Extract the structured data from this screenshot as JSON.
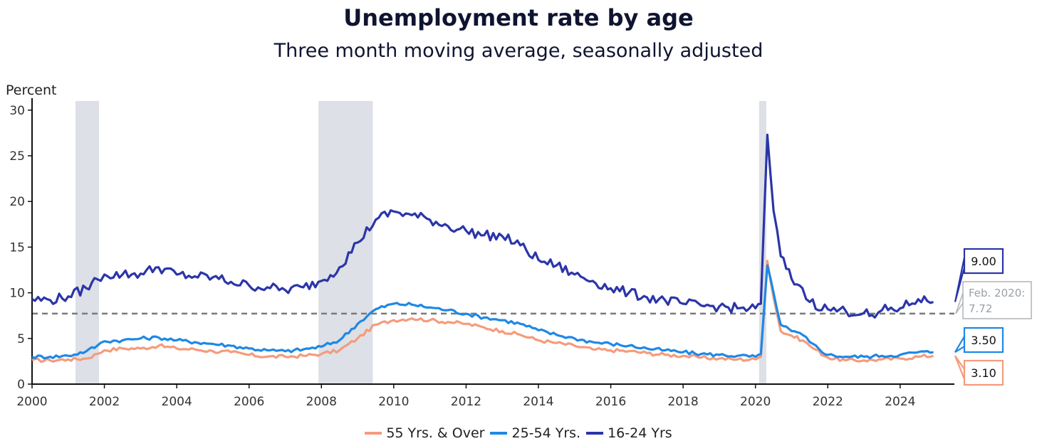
{
  "chart_data": {
    "type": "line",
    "title": "Unemployment rate by age",
    "subtitle": "Three month moving average, seasonally adjusted",
    "ylabel": "Percent",
    "xlabel": "",
    "ylim": [
      0,
      31
    ],
    "xlim": [
      2000,
      2025.5
    ],
    "yticks": [
      0,
      5,
      10,
      15,
      20,
      25,
      30
    ],
    "xticks": [
      "2000",
      "2002",
      "2004",
      "2006",
      "2008",
      "2010",
      "2012",
      "2014",
      "2016",
      "2018",
      "2020",
      "2022",
      "2024"
    ],
    "grid": false,
    "legend_position": "bottom",
    "recessions": [
      [
        2001.2,
        2001.85
      ],
      [
        2007.92,
        2009.42
      ],
      [
        2020.1,
        2020.3
      ]
    ],
    "reference_line": {
      "value": 7.72,
      "label_line1": "Feb. 2020:",
      "label_line2": "7.72",
      "color": "#7a7a7a"
    },
    "series": [
      {
        "name": "55 Yrs. & Over",
        "color": "#f59b7c",
        "end_label": "3.10",
        "points": [
          [
            2000,
            2.6
          ],
          [
            2000.5,
            2.6
          ],
          [
            2001,
            2.7
          ],
          [
            2001.5,
            2.8
          ],
          [
            2001.8,
            3.3
          ],
          [
            2002,
            3.7
          ],
          [
            2002.5,
            3.9
          ],
          [
            2003,
            3.9
          ],
          [
            2003.5,
            4.2
          ],
          [
            2004,
            3.9
          ],
          [
            2004.5,
            3.8
          ],
          [
            2005,
            3.6
          ],
          [
            2005.5,
            3.5
          ],
          [
            2006,
            3.2
          ],
          [
            2006.5,
            3.0
          ],
          [
            2007,
            3.0
          ],
          [
            2007.5,
            3.1
          ],
          [
            2008,
            3.3
          ],
          [
            2008.5,
            3.7
          ],
          [
            2009,
            5.0
          ],
          [
            2009.5,
            6.5
          ],
          [
            2010,
            7.0
          ],
          [
            2010.5,
            7.2
          ],
          [
            2011,
            7.0
          ],
          [
            2011.5,
            6.8
          ],
          [
            2012,
            6.6
          ],
          [
            2012.5,
            6.2
          ],
          [
            2013,
            5.8
          ],
          [
            2013.5,
            5.4
          ],
          [
            2014,
            4.8
          ],
          [
            2014.5,
            4.5
          ],
          [
            2015,
            4.2
          ],
          [
            2015.5,
            3.8
          ],
          [
            2016,
            3.7
          ],
          [
            2016.5,
            3.6
          ],
          [
            2017,
            3.4
          ],
          [
            2017.5,
            3.2
          ],
          [
            2018,
            3.1
          ],
          [
            2018.5,
            2.9
          ],
          [
            2019,
            2.8
          ],
          [
            2019.5,
            2.7
          ],
          [
            2020,
            2.7
          ],
          [
            2020.15,
            3.0
          ],
          [
            2020.33,
            13.5
          ],
          [
            2020.5,
            9.5
          ],
          [
            2020.7,
            5.8
          ],
          [
            2021,
            5.3
          ],
          [
            2021.3,
            4.8
          ],
          [
            2021.5,
            4.2
          ],
          [
            2022,
            2.9
          ],
          [
            2022.5,
            2.6
          ],
          [
            2023,
            2.6
          ],
          [
            2023.5,
            2.7
          ],
          [
            2024,
            2.8
          ],
          [
            2024.5,
            3.0
          ],
          [
            2024.92,
            3.1
          ]
        ]
      },
      {
        "name": "25-54 Yrs.",
        "color": "#1e88e5",
        "end_label": "3.50",
        "points": [
          [
            2000,
            3.0
          ],
          [
            2000.5,
            3.0
          ],
          [
            2001,
            3.1
          ],
          [
            2001.5,
            3.6
          ],
          [
            2001.8,
            4.2
          ],
          [
            2002,
            4.7
          ],
          [
            2002.5,
            4.8
          ],
          [
            2003,
            5.0
          ],
          [
            2003.5,
            5.1
          ],
          [
            2004,
            4.8
          ],
          [
            2004.5,
            4.6
          ],
          [
            2005,
            4.4
          ],
          [
            2005.5,
            4.2
          ],
          [
            2006,
            3.9
          ],
          [
            2006.5,
            3.7
          ],
          [
            2007,
            3.6
          ],
          [
            2007.5,
            3.8
          ],
          [
            2008,
            4.1
          ],
          [
            2008.5,
            4.8
          ],
          [
            2009,
            6.6
          ],
          [
            2009.5,
            8.2
          ],
          [
            2010,
            8.8
          ],
          [
            2010.5,
            8.7
          ],
          [
            2011,
            8.4
          ],
          [
            2011.5,
            8.1
          ],
          [
            2012,
            7.7
          ],
          [
            2012.5,
            7.3
          ],
          [
            2013,
            7.0
          ],
          [
            2013.5,
            6.6
          ],
          [
            2014,
            5.9
          ],
          [
            2014.5,
            5.4
          ],
          [
            2015,
            5.0
          ],
          [
            2015.5,
            4.6
          ],
          [
            2016,
            4.4
          ],
          [
            2016.5,
            4.2
          ],
          [
            2017,
            3.9
          ],
          [
            2017.5,
            3.7
          ],
          [
            2018,
            3.5
          ],
          [
            2018.5,
            3.3
          ],
          [
            2019,
            3.2
          ],
          [
            2019.5,
            3.1
          ],
          [
            2020,
            3.0
          ],
          [
            2020.15,
            3.3
          ],
          [
            2020.33,
            13.0
          ],
          [
            2020.5,
            10.0
          ],
          [
            2020.7,
            6.5
          ],
          [
            2021,
            5.8
          ],
          [
            2021.3,
            5.4
          ],
          [
            2021.5,
            4.6
          ],
          [
            2022,
            3.2
          ],
          [
            2022.5,
            3.0
          ],
          [
            2023,
            3.0
          ],
          [
            2023.5,
            3.1
          ],
          [
            2024,
            3.2
          ],
          [
            2024.5,
            3.5
          ],
          [
            2024.92,
            3.5
          ]
        ]
      },
      {
        "name": "16-24 Yrs",
        "color": "#2b35a8",
        "end_label": "9.00",
        "points": [
          [
            2000,
            9.3
          ],
          [
            2000.5,
            9.2
          ],
          [
            2001,
            9.6
          ],
          [
            2001.5,
            10.5
          ],
          [
            2001.8,
            11.5
          ],
          [
            2002,
            12.0
          ],
          [
            2002.5,
            12.0
          ],
          [
            2003,
            12.1
          ],
          [
            2003.5,
            12.8
          ],
          [
            2004,
            12.0
          ],
          [
            2004.5,
            11.8
          ],
          [
            2005,
            11.7
          ],
          [
            2005.5,
            11.2
          ],
          [
            2006,
            10.8
          ],
          [
            2006.5,
            10.6
          ],
          [
            2007,
            10.3
          ],
          [
            2007.5,
            10.6
          ],
          [
            2008,
            11.3
          ],
          [
            2008.5,
            12.8
          ],
          [
            2009,
            15.5
          ],
          [
            2009.5,
            18.0
          ],
          [
            2010,
            18.9
          ],
          [
            2010.5,
            18.5
          ],
          [
            2011,
            18.0
          ],
          [
            2011.5,
            17.3
          ],
          [
            2012,
            16.8
          ],
          [
            2012.5,
            16.3
          ],
          [
            2013,
            16.2
          ],
          [
            2013.5,
            15.2
          ],
          [
            2014,
            13.6
          ],
          [
            2014.5,
            13.0
          ],
          [
            2015,
            12.0
          ],
          [
            2015.5,
            11.3
          ],
          [
            2016,
            10.5
          ],
          [
            2016.5,
            10.0
          ],
          [
            2017,
            9.5
          ],
          [
            2017.5,
            9.2
          ],
          [
            2018,
            8.8
          ],
          [
            2018.5,
            8.6
          ],
          [
            2019,
            8.5
          ],
          [
            2019.5,
            8.3
          ],
          [
            2020,
            8.3
          ],
          [
            2020.15,
            8.8
          ],
          [
            2020.33,
            27.3
          ],
          [
            2020.5,
            19.0
          ],
          [
            2020.7,
            14.0
          ],
          [
            2021,
            11.5
          ],
          [
            2021.3,
            10.5
          ],
          [
            2021.5,
            9.0
          ],
          [
            2022,
            8.2
          ],
          [
            2022.5,
            8.0
          ],
          [
            2023,
            7.8
          ],
          [
            2023.3,
            7.3
          ],
          [
            2023.5,
            8.1
          ],
          [
            2024,
            8.3
          ],
          [
            2024.5,
            9.3
          ],
          [
            2024.92,
            9.0
          ]
        ]
      }
    ]
  }
}
